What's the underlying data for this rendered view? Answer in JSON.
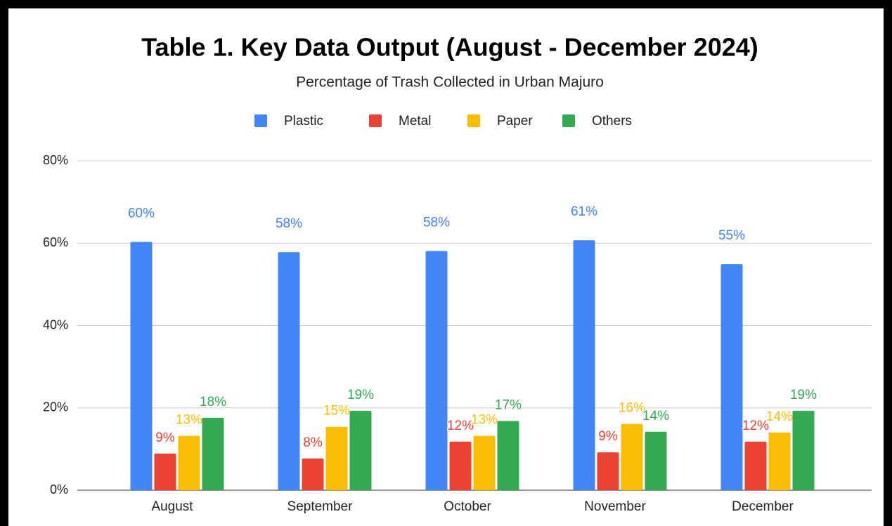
{
  "chart_data": {
    "type": "bar",
    "title": "Table 1. Key Data Output (August - December 2024)",
    "subtitle": "Percentage of Trash Collected in Urban Majuro",
    "categories": [
      "August",
      "September",
      "October",
      "November",
      "December"
    ],
    "series": [
      {
        "name": "Plastic",
        "color": "#4285f4",
        "values": [
          60.3,
          57.8,
          58.1,
          60.7,
          54.9
        ],
        "value_labels": [
          "60%",
          "58%",
          "58%",
          "61%",
          "55%"
        ]
      },
      {
        "name": "Metal",
        "color": "#ea4335",
        "values": [
          8.9,
          7.7,
          11.8,
          9.2,
          11.8
        ],
        "value_labels": [
          "9%",
          "8%",
          "12%",
          "9%",
          "12%"
        ]
      },
      {
        "name": "Paper",
        "color": "#fbbc04",
        "values": [
          13.2,
          15.4,
          13.2,
          16.1,
          14.0
        ],
        "value_labels": [
          "13%",
          "15%",
          "13%",
          "16%",
          "14%"
        ]
      },
      {
        "name": "Others",
        "color": "#34a853",
        "values": [
          17.6,
          19.3,
          16.8,
          14.2,
          19.3
        ],
        "value_labels": [
          "18%",
          "19%",
          "17%",
          "14%",
          "19%"
        ]
      }
    ],
    "ylim": [
      0,
      80
    ],
    "yticks": [
      {
        "value": 0,
        "label": "0%"
      },
      {
        "value": 20,
        "label": "20%"
      },
      {
        "value": 40,
        "label": "40%"
      },
      {
        "value": 60,
        "label": "60%"
      },
      {
        "value": 80,
        "label": "80%"
      }
    ],
    "grid": true,
    "legend": "top"
  }
}
